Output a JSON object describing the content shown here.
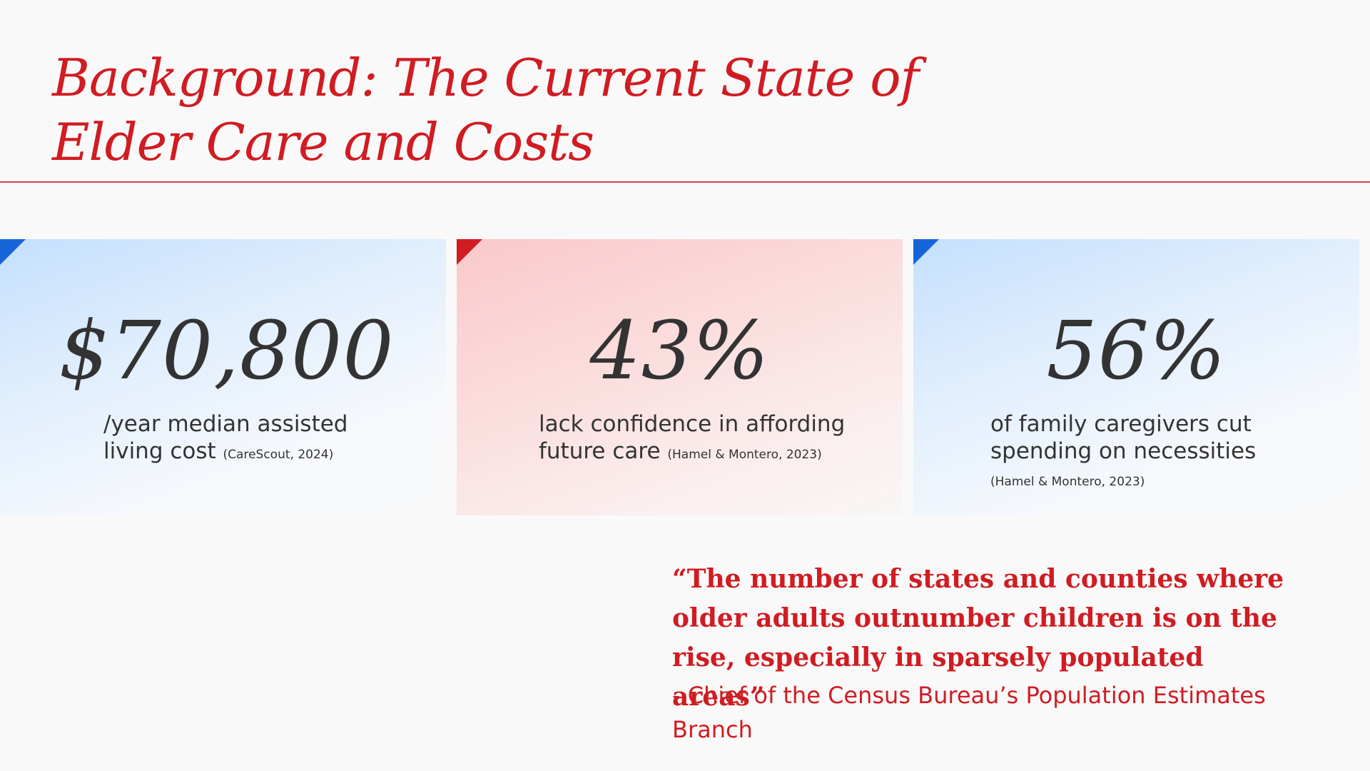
{
  "title": {
    "line1": "Background: The Current State of",
    "line2": "Elder Care and Costs"
  },
  "stats": [
    {
      "value": "$70,800",
      "description": "/year median assisted living cost",
      "citation": "(CareScout, 2024)"
    },
    {
      "value": "43%",
      "description": "lack confidence in affording future care",
      "citation": "(Hamel & Montero, 2023)"
    },
    {
      "value": "56%",
      "description": "of family caregivers cut spending on necessities",
      "citation": "(Hamel & Montero, 2023)"
    }
  ],
  "quote": {
    "text": "“The number of states and counties where older adults outnumber children is on the rise, especially in sparsely populated areas”",
    "attribution": "- Chief of the Census Bureau’s Population Estimates Branch"
  },
  "colors": {
    "accent_red": "#d01c22",
    "accent_blue": "#1565d8",
    "text_dark": "#333333",
    "background": "#f9f9f9"
  }
}
